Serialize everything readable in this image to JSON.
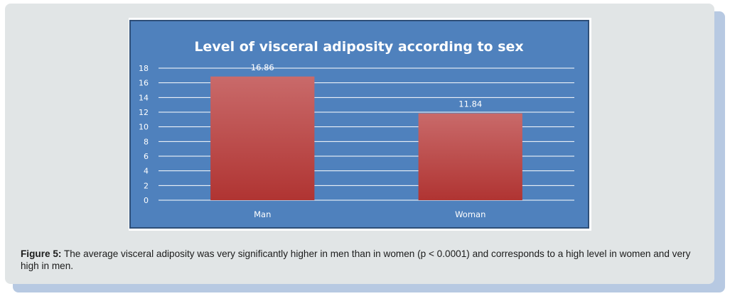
{
  "figure": {
    "caption_lead": "Figure 5:",
    "caption_text": "The average visceral adiposity was very significantly higher in men than in women (p < 0.0001) and corresponds to a high level in women and very high in men."
  },
  "colors": {
    "panel_bg": "#e1e5e6",
    "plot_bg": "#4f81bd",
    "bar_top": "#c96a6a",
    "bar_bottom": "#b03432",
    "gridline": "#ffffff"
  },
  "chart_data": {
    "type": "bar",
    "title": "Level of visceral adiposity according to sex",
    "categories": [
      "Man",
      "Woman"
    ],
    "series": [
      {
        "values": [
          16.86,
          11.84
        ]
      }
    ],
    "data_labels": [
      "16.86",
      "11.84"
    ],
    "xlabel": "",
    "ylabel": "",
    "ylim": [
      0,
      18
    ],
    "yticks": [
      0,
      2,
      4,
      6,
      8,
      10,
      12,
      14,
      16,
      18
    ],
    "grid": true,
    "legend": "none"
  }
}
